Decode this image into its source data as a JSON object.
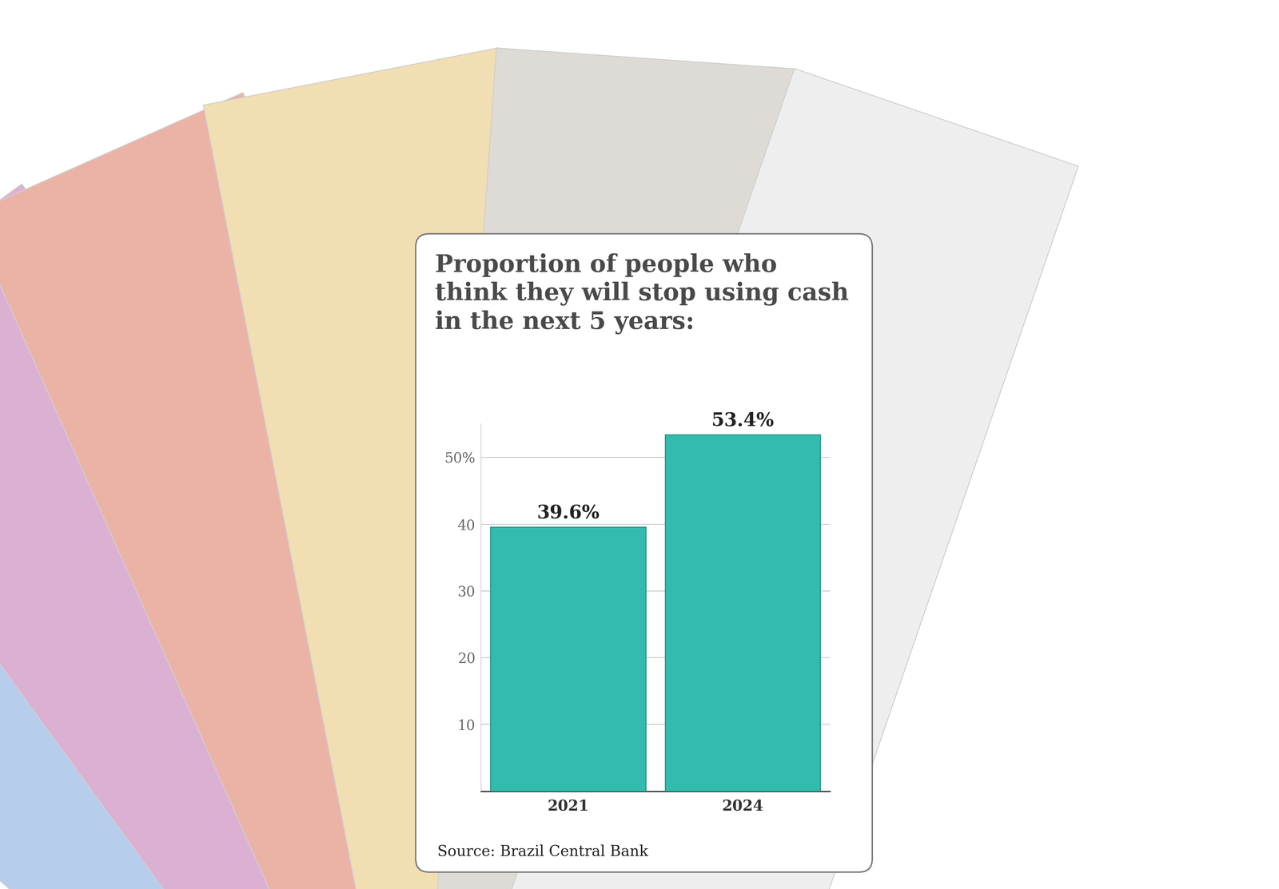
{
  "chart_data": {
    "type": "bar",
    "title": "Proportion of people who think they will stop using cash in the next 5 years:",
    "categories": [
      "2021",
      "2024"
    ],
    "values": [
      39.6,
      53.4
    ],
    "value_labels": [
      "39.6%",
      "53.4%"
    ],
    "data_labels": true,
    "color": "#33bbae",
    "ylim": [
      0,
      55
    ],
    "yticks": [
      10,
      20,
      30,
      40,
      {
        "value": 50,
        "label": "50%"
      }
    ],
    "grid": true,
    "source": "Source: Brazil Central Bank"
  }
}
